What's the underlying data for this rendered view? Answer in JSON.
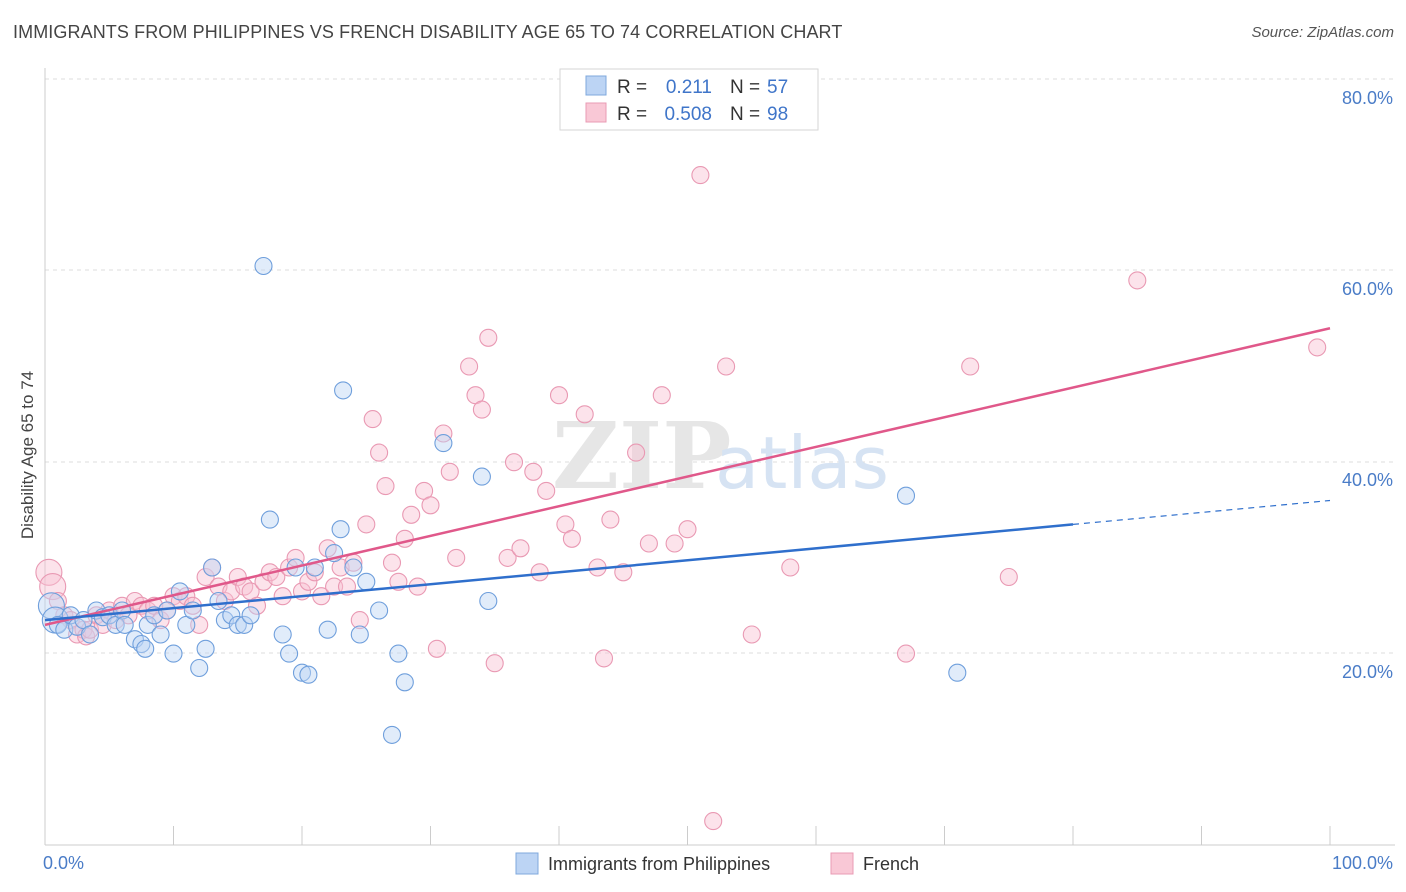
{
  "title": "IMMIGRANTS FROM PHILIPPINES VS FRENCH DISABILITY AGE 65 TO 74 CORRELATION CHART",
  "source": "Source: ZipAtlas.com",
  "watermark": {
    "zip": "ZIP",
    "atlas": "atlas"
  },
  "legend": {
    "rows": [
      {
        "r_label": "R =",
        "r_value": "0.211",
        "n_label": "N =",
        "n_value": "57"
      },
      {
        "r_label": "R =",
        "r_value": "0.508",
        "n_label": "N =",
        "n_value": "98"
      }
    ]
  },
  "chart_data": {
    "type": "scatter",
    "title": "IMMIGRANTS FROM PHILIPPINES VS FRENCH DISABILITY AGE 65 TO 74 CORRELATION CHART",
    "xlabel": "",
    "ylabel": "Disability Age 65 to 74",
    "xlim": [
      0,
      100
    ],
    "ylim": [
      0,
      85
    ],
    "x_tick_labels": [
      "0.0%",
      "100.0%"
    ],
    "y_ticks": [
      20,
      40,
      60,
      80
    ],
    "y_tick_labels": [
      "20.0%",
      "40.0%",
      "60.0%",
      "80.0%"
    ],
    "grid": true,
    "legend_position": "top-center",
    "series": [
      {
        "name": "Immigrants from Philippines",
        "color": "#7fb0e8",
        "line_color": "#2f6fcc",
        "r": 0.211,
        "n": 57,
        "trend": {
          "x0": 0,
          "y0": 23.5,
          "x1": 80,
          "y1": 33.5,
          "dash_to_x": 100,
          "dash_to_y": 36.0
        },
        "points": [
          [
            0.5,
            25.0
          ],
          [
            0.8,
            23.5
          ],
          [
            1.0,
            23.0
          ],
          [
            1.5,
            22.5
          ],
          [
            2.0,
            24.0
          ],
          [
            2.5,
            22.8
          ],
          [
            3.0,
            23.5
          ],
          [
            3.5,
            22.0
          ],
          [
            4.0,
            24.5
          ],
          [
            4.5,
            23.8
          ],
          [
            5.0,
            24.0
          ],
          [
            5.5,
            23.0
          ],
          [
            6.0,
            24.5
          ],
          [
            6.2,
            23.0
          ],
          [
            7.0,
            21.5
          ],
          [
            7.5,
            21.0
          ],
          [
            7.8,
            20.5
          ],
          [
            8.0,
            23.0
          ],
          [
            8.5,
            24.0
          ],
          [
            9.0,
            22.0
          ],
          [
            9.5,
            24.5
          ],
          [
            10.0,
            20.0
          ],
          [
            10.5,
            26.5
          ],
          [
            11.0,
            23.0
          ],
          [
            11.5,
            24.5
          ],
          [
            12.0,
            18.5
          ],
          [
            12.5,
            20.5
          ],
          [
            13.0,
            29.0
          ],
          [
            13.5,
            25.5
          ],
          [
            14.0,
            23.5
          ],
          [
            14.5,
            24.0
          ],
          [
            15.0,
            23.0
          ],
          [
            15.5,
            23.0
          ],
          [
            16.0,
            24.0
          ],
          [
            17.0,
            60.5
          ],
          [
            17.5,
            34.0
          ],
          [
            18.5,
            22.0
          ],
          [
            19.0,
            20.0
          ],
          [
            19.5,
            29.0
          ],
          [
            20.0,
            18.0
          ],
          [
            20.5,
            17.8
          ],
          [
            21.0,
            29.0
          ],
          [
            22.0,
            22.5
          ],
          [
            22.5,
            30.5
          ],
          [
            23.0,
            33.0
          ],
          [
            23.2,
            47.5
          ],
          [
            24.0,
            29.0
          ],
          [
            24.5,
            22.0
          ],
          [
            25.0,
            27.5
          ],
          [
            26.0,
            24.5
          ],
          [
            27.0,
            11.5
          ],
          [
            27.5,
            20.0
          ],
          [
            28.0,
            17.0
          ],
          [
            31.0,
            42.0
          ],
          [
            34.0,
            38.5
          ],
          [
            34.5,
            25.5
          ],
          [
            67.0,
            36.5
          ],
          [
            71.0,
            18.0
          ]
        ]
      },
      {
        "name": "French",
        "color": "#f4a3bc",
        "line_color": "#e0588a",
        "r": 0.508,
        "n": 98,
        "trend": {
          "x0": 0,
          "y0": 23.0,
          "x1": 100,
          "y1": 54.0
        },
        "points": [
          [
            0.3,
            28.5
          ],
          [
            0.6,
            27.0
          ],
          [
            1.0,
            25.5
          ],
          [
            1.5,
            24.0
          ],
          [
            2.0,
            23.5
          ],
          [
            2.5,
            22.0
          ],
          [
            3.0,
            22.5
          ],
          [
            3.2,
            21.8
          ],
          [
            3.5,
            22.5
          ],
          [
            4.0,
            24.0
          ],
          [
            4.5,
            23.0
          ],
          [
            5.0,
            24.5
          ],
          [
            5.5,
            23.5
          ],
          [
            6.0,
            25.0
          ],
          [
            6.5,
            24.0
          ],
          [
            7.0,
            25.5
          ],
          [
            7.5,
            25.0
          ],
          [
            8.0,
            24.5
          ],
          [
            8.5,
            25.0
          ],
          [
            9.0,
            23.5
          ],
          [
            9.5,
            24.5
          ],
          [
            10.0,
            26.0
          ],
          [
            10.5,
            25.5
          ],
          [
            11.0,
            26.0
          ],
          [
            11.5,
            25.0
          ],
          [
            12.0,
            23.0
          ],
          [
            12.5,
            28.0
          ],
          [
            13.0,
            29.0
          ],
          [
            13.5,
            27.0
          ],
          [
            14.0,
            25.5
          ],
          [
            14.5,
            26.5
          ],
          [
            15.0,
            28.0
          ],
          [
            15.5,
            27.0
          ],
          [
            16.0,
            26.5
          ],
          [
            16.5,
            25.0
          ],
          [
            17.0,
            27.5
          ],
          [
            17.5,
            28.5
          ],
          [
            18.0,
            28.0
          ],
          [
            18.5,
            26.0
          ],
          [
            19.0,
            29.0
          ],
          [
            19.5,
            30.0
          ],
          [
            20.0,
            26.5
          ],
          [
            20.5,
            27.5
          ],
          [
            21.0,
            28.5
          ],
          [
            21.5,
            26.0
          ],
          [
            22.0,
            31.0
          ],
          [
            22.5,
            27.0
          ],
          [
            23.0,
            29.0
          ],
          [
            23.5,
            27.0
          ],
          [
            24.0,
            29.5
          ],
          [
            24.5,
            23.5
          ],
          [
            25.0,
            33.5
          ],
          [
            25.5,
            44.5
          ],
          [
            26.0,
            41.0
          ],
          [
            26.5,
            37.5
          ],
          [
            27.0,
            29.5
          ],
          [
            27.5,
            27.5
          ],
          [
            28.0,
            32.0
          ],
          [
            28.5,
            34.5
          ],
          [
            29.0,
            27.0
          ],
          [
            29.5,
            37.0
          ],
          [
            30.0,
            35.5
          ],
          [
            30.5,
            20.5
          ],
          [
            31.0,
            43.0
          ],
          [
            31.5,
            39.0
          ],
          [
            32.0,
            30.0
          ],
          [
            33.0,
            50.0
          ],
          [
            33.5,
            47.0
          ],
          [
            34.0,
            45.5
          ],
          [
            34.5,
            53.0
          ],
          [
            35.0,
            19.0
          ],
          [
            36.0,
            30.0
          ],
          [
            36.5,
            40.0
          ],
          [
            37.0,
            31.0
          ],
          [
            38.0,
            39.0
          ],
          [
            38.5,
            28.5
          ],
          [
            39.0,
            37.0
          ],
          [
            40.0,
            47.0
          ],
          [
            40.5,
            33.5
          ],
          [
            41.0,
            32.0
          ],
          [
            42.0,
            45.0
          ],
          [
            43.0,
            29.0
          ],
          [
            43.5,
            19.5
          ],
          [
            44.0,
            34.0
          ],
          [
            45.0,
            28.5
          ],
          [
            46.0,
            41.0
          ],
          [
            47.0,
            31.5
          ],
          [
            48.0,
            47.0
          ],
          [
            49.0,
            31.5
          ],
          [
            50.0,
            33.0
          ],
          [
            51.0,
            70.0
          ],
          [
            52.0,
            2.5
          ],
          [
            53.0,
            50.0
          ],
          [
            55.0,
            22.0
          ],
          [
            58.0,
            29.0
          ],
          [
            67.0,
            20.0
          ],
          [
            72.0,
            50.0
          ],
          [
            75.0,
            28.0
          ],
          [
            85.0,
            59.0
          ],
          [
            99.0,
            52.0
          ]
        ]
      }
    ]
  }
}
